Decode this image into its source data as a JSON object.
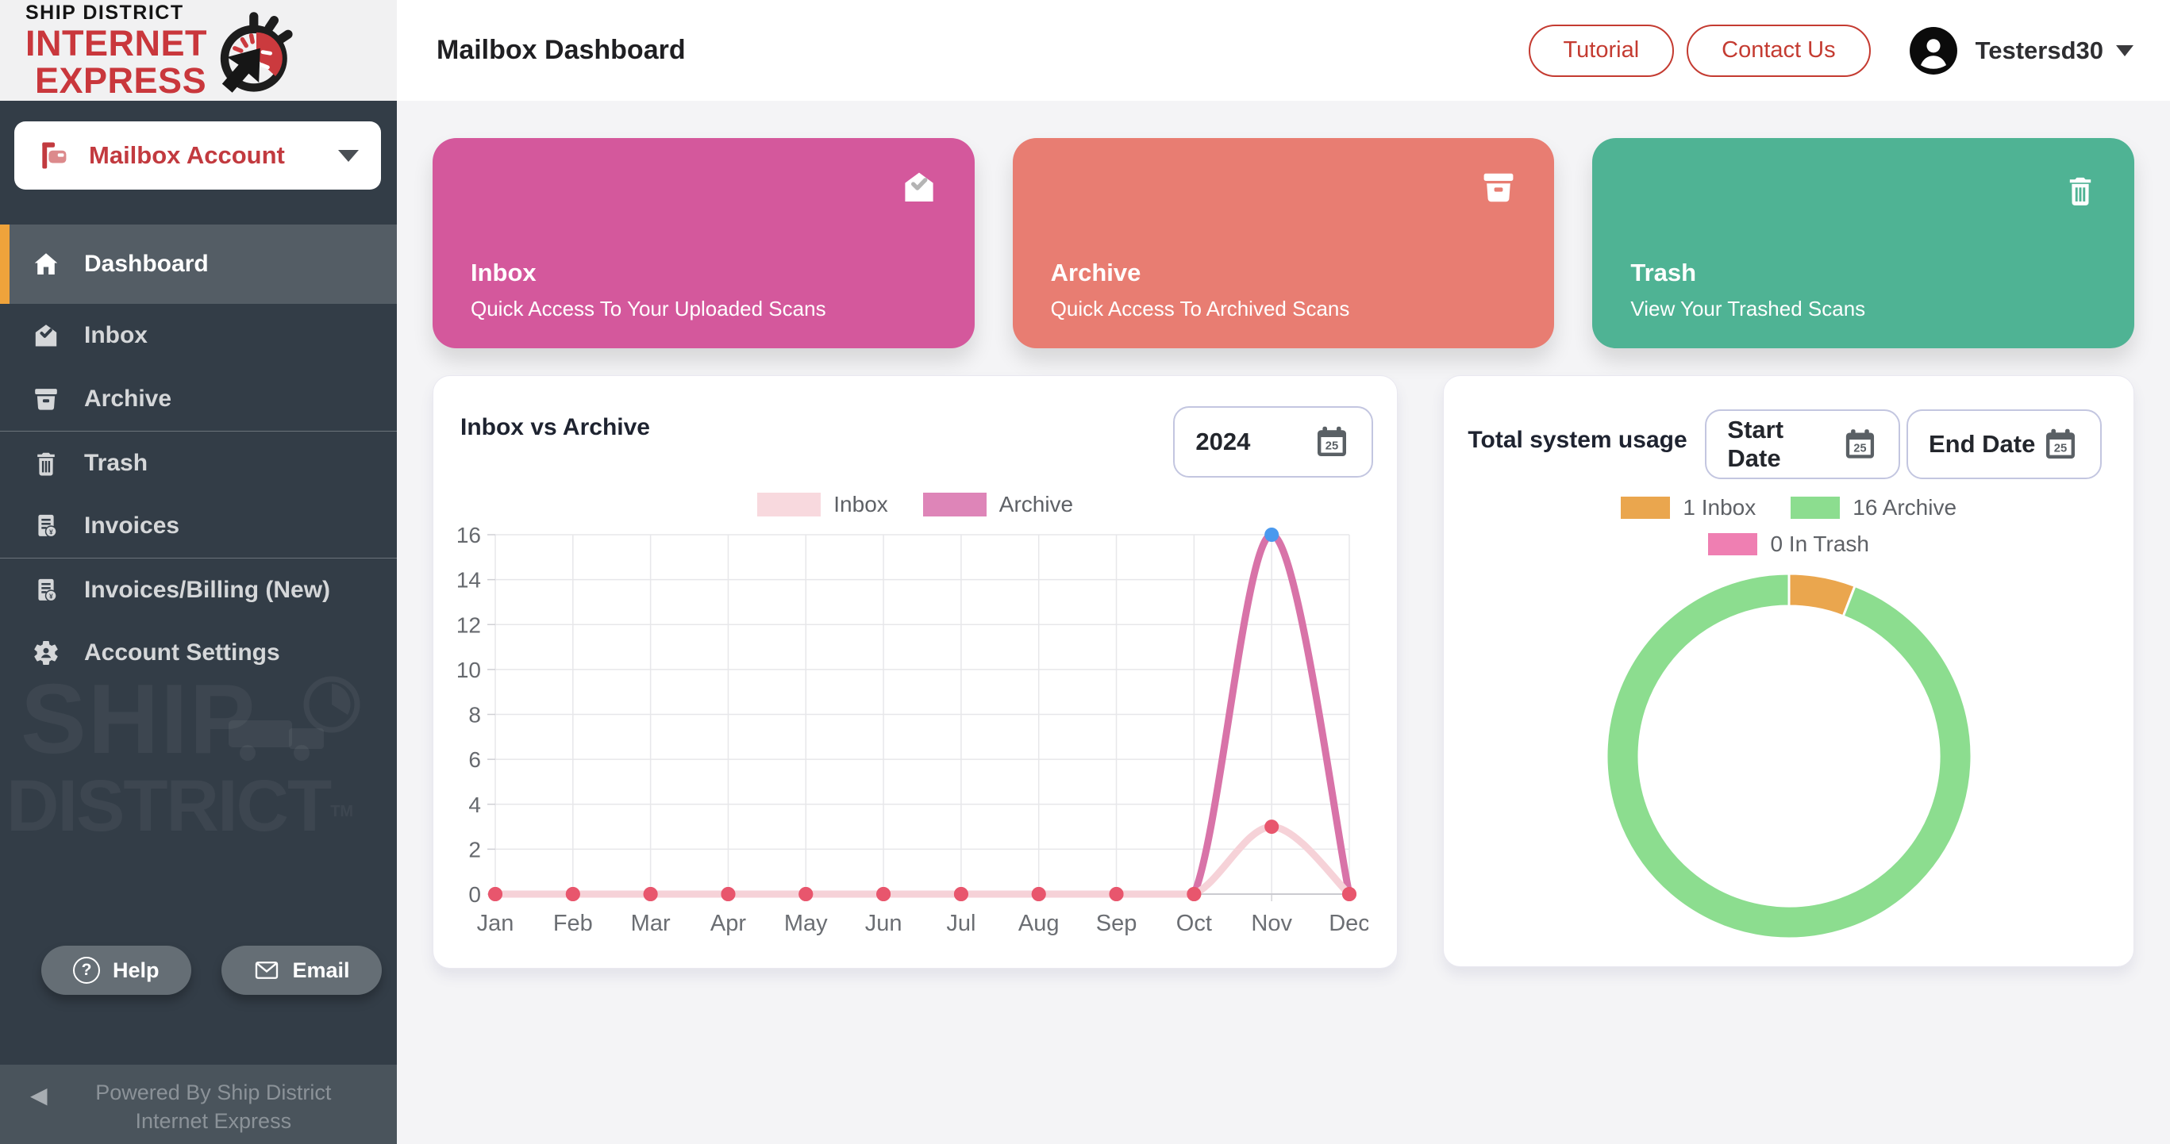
{
  "brand": {
    "top": "SHIP DISTRICT",
    "line1": "INTERNET",
    "line2": "EXPRESS",
    "tm": "TM"
  },
  "sidebar": {
    "account_selector_label": "Mailbox Account",
    "items": [
      {
        "label": "Dashboard"
      },
      {
        "label": "Inbox"
      },
      {
        "label": "Archive"
      },
      {
        "label": "Trash"
      },
      {
        "label": "Invoices"
      },
      {
        "label": "Invoices/Billing (New)"
      },
      {
        "label": "Account Settings"
      }
    ],
    "watermark_line1": "SHIP",
    "watermark_line2": "DISTRICT",
    "help_label": "Help",
    "email_label": "Email",
    "footer_text": "Powered By Ship District Internet Express"
  },
  "header": {
    "title": "Mailbox Dashboard",
    "tutorial_label": "Tutorial",
    "contact_label": "Contact Us",
    "username": "Testersd30"
  },
  "cards": [
    {
      "title": "Inbox",
      "subtitle": "Quick Access To Your Uploaded Scans",
      "color": "#d4589c"
    },
    {
      "title": "Archive",
      "subtitle": "Quick Access To Archived Scans",
      "color": "#e87d72"
    },
    {
      "title": "Trash",
      "subtitle": "View Your Trashed Scans",
      "color": "#4fb394"
    }
  ],
  "line_panel": {
    "title": "Inbox vs Archive",
    "year_value": "2024"
  },
  "donut_panel": {
    "title": "Total system usage",
    "start_label": "Start Date",
    "end_label": "End Date"
  },
  "icons": {
    "calendar_day_label": "25",
    "help_glyph": "?",
    "yen_glyph": "¥",
    "collapse_glyph": "◀"
  },
  "chart_data": [
    {
      "type": "line",
      "title": "Inbox vs Archive",
      "categories": [
        "Jan",
        "Feb",
        "Mar",
        "Apr",
        "May",
        "Jun",
        "Jul",
        "Aug",
        "Sep",
        "Oct",
        "Nov",
        "Dec"
      ],
      "series": [
        {
          "name": "Inbox",
          "values": [
            0,
            0,
            0,
            0,
            0,
            0,
            0,
            0,
            0,
            0,
            3,
            0
          ],
          "line_color": "#f6d2d8",
          "swatch_color": "#f8d9de",
          "point_color": "#e8566d"
        },
        {
          "name": "Archive",
          "values": [
            0,
            0,
            0,
            0,
            0,
            0,
            0,
            0,
            0,
            0,
            16,
            0
          ],
          "line_color": "#d873a8",
          "swatch_color": "#de85b8",
          "point_color": "#e8566d",
          "highlight_index": 10,
          "highlight_color": "#4a99ee"
        }
      ],
      "xlabel": "",
      "ylabel": "",
      "ylim": [
        0,
        16
      ],
      "ytick_step": 2,
      "grid": true,
      "legend_position": "top"
    },
    {
      "type": "donut",
      "title": "Total system usage",
      "slices": [
        {
          "label": "1 Inbox",
          "value": 1,
          "color": "#eaa64e"
        },
        {
          "label": "16 Archive",
          "value": 16,
          "color": "#8cdd8f"
        },
        {
          "label": "0 In Trash",
          "value": 0,
          "color": "#ef7fb2"
        }
      ],
      "start_angle_deg": -90,
      "direction": "clockwise",
      "legend_position": "top"
    }
  ]
}
